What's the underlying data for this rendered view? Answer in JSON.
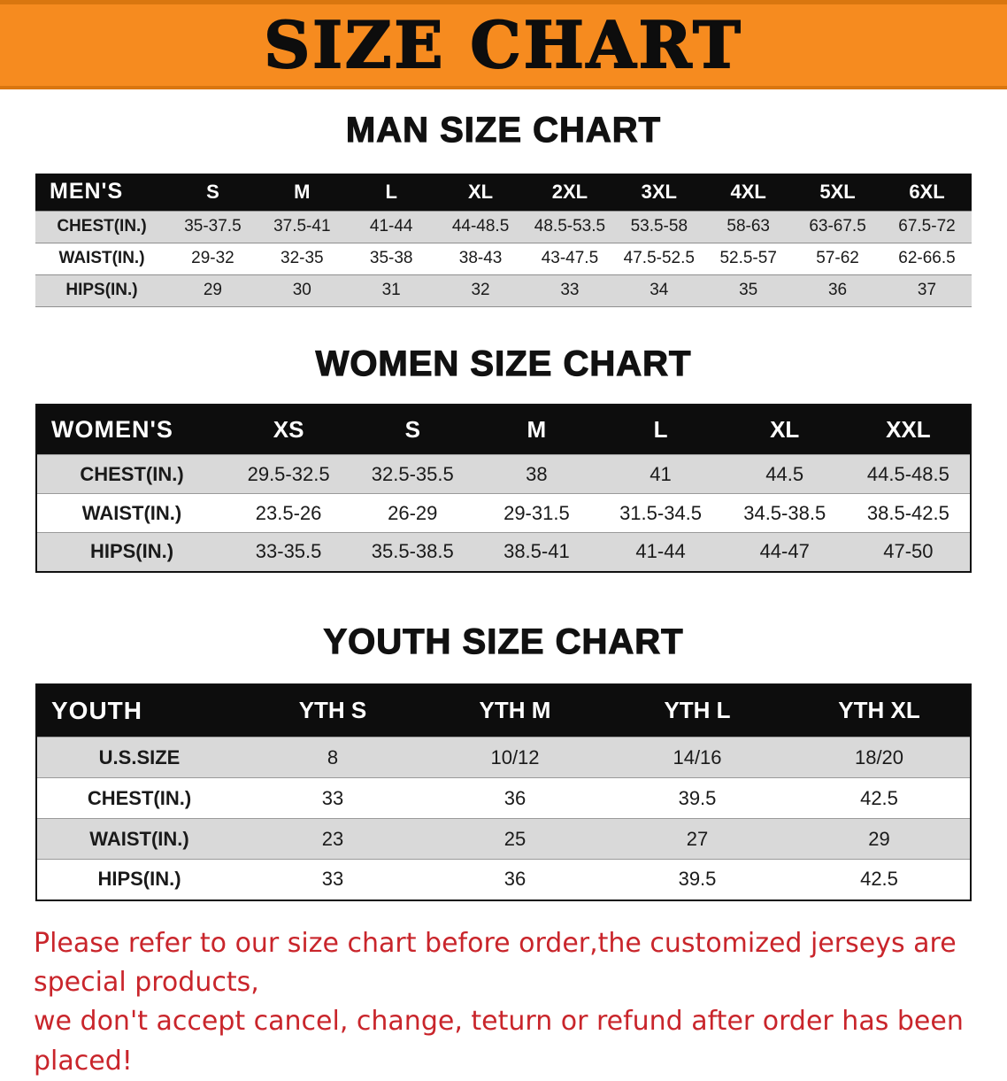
{
  "banner": {
    "title": "SIZE CHART"
  },
  "sections": {
    "men": {
      "heading": "MAN SIZE CHART",
      "table": {
        "header": [
          "MEN'S",
          "S",
          "M",
          "L",
          "XL",
          "2XL",
          "3XL",
          "4XL",
          "5XL",
          "6XL"
        ],
        "rows": [
          [
            "CHEST(IN.)",
            "35-37.5",
            "37.5-41",
            "41-44",
            "44-48.5",
            "48.5-53.5",
            "53.5-58",
            "58-63",
            "63-67.5",
            "67.5-72"
          ],
          [
            "WAIST(IN.)",
            "29-32",
            "32-35",
            "35-38",
            "38-43",
            "43-47.5",
            "47.5-52.5",
            "52.5-57",
            "57-62",
            "62-66.5"
          ],
          [
            "HIPS(IN.)",
            "29",
            "30",
            "31",
            "32",
            "33",
            "34",
            "35",
            "36",
            "37"
          ]
        ]
      }
    },
    "women": {
      "heading": "WOMEN SIZE CHART",
      "table": {
        "header": [
          "WOMEN'S",
          "XS",
          "S",
          "M",
          "L",
          "XL",
          "XXL"
        ],
        "rows": [
          [
            "CHEST(IN.)",
            "29.5-32.5",
            "32.5-35.5",
            "38",
            "41",
            "44.5",
            "44.5-48.5"
          ],
          [
            "WAIST(IN.)",
            "23.5-26",
            "26-29",
            "29-31.5",
            "31.5-34.5",
            "34.5-38.5",
            "38.5-42.5"
          ],
          [
            "HIPS(IN.)",
            "33-35.5",
            "35.5-38.5",
            "38.5-41",
            "41-44",
            "44-47",
            "47-50"
          ]
        ]
      }
    },
    "youth": {
      "heading": "YOUTH SIZE CHART",
      "table": {
        "header": [
          "YOUTH",
          "YTH S",
          "YTH M",
          "YTH L",
          "YTH XL"
        ],
        "rows": [
          [
            "U.S.SIZE",
            "8",
            "10/12",
            "14/16",
            "18/20"
          ],
          [
            "CHEST(IN.)",
            "33",
            "36",
            "39.5",
            "42.5"
          ],
          [
            "WAIST(IN.)",
            "23",
            "25",
            "27",
            "29"
          ],
          [
            "HIPS(IN.)",
            "33",
            "36",
            "39.5",
            "42.5"
          ]
        ]
      }
    }
  },
  "footer": {
    "line1": "Please refer to our size chart before order,the customized jerseys are special products,",
    "line2": "we don't accept cancel, change, teturn or refund after order has been placed!"
  },
  "colors": {
    "banner_bg": "#f68b1f",
    "table_header_bg": "#0d0d0d",
    "row_alt_bg": "#d9d9d9",
    "disclaimer_color": "#c9252b"
  }
}
